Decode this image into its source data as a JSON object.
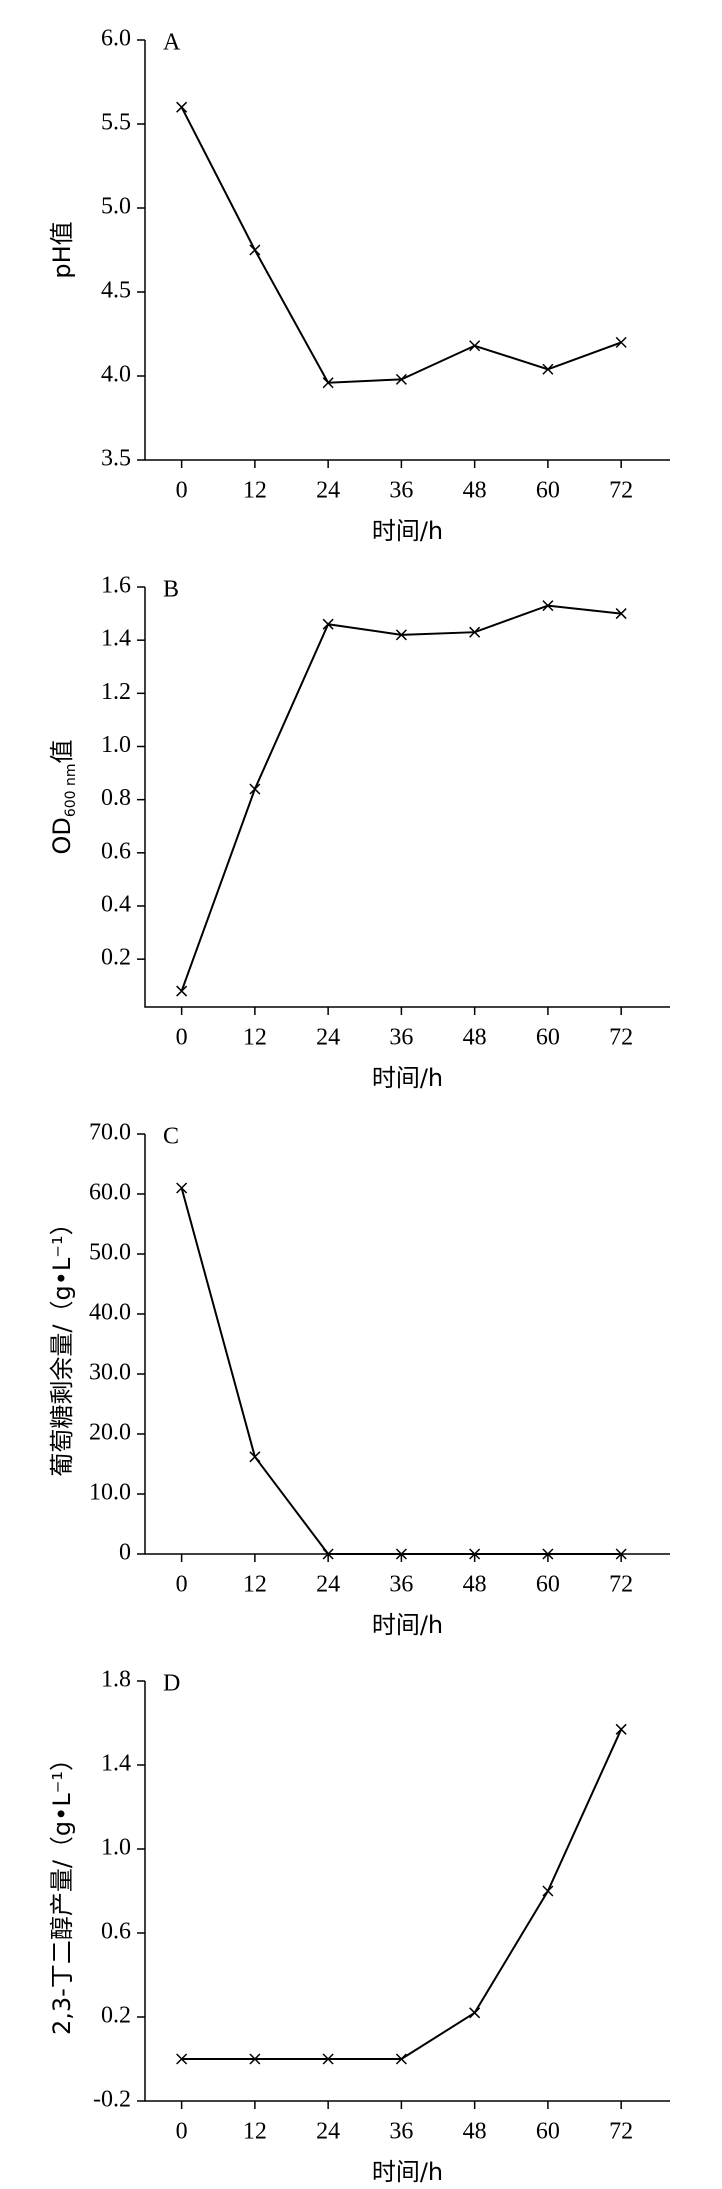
{
  "chart_data": [
    {
      "type": "line",
      "title": "A",
      "xlabel": "时间/h",
      "ylabel": "pH值",
      "x": [
        0,
        12,
        24,
        36,
        48,
        60,
        72
      ],
      "values": [
        5.6,
        4.75,
        3.96,
        3.98,
        4.18,
        4.04,
        4.2
      ],
      "color": "#000000",
      "xlim": [
        -6,
        80
      ],
      "xticks": [
        0,
        12,
        24,
        36,
        48,
        60,
        72
      ],
      "ylim": [
        3.5,
        6.0
      ],
      "yticks": [
        3.5,
        {
          "value": 4,
          "label": "4.0"
        },
        4.5,
        {
          "value": 5,
          "label": "5.0"
        },
        5.5,
        {
          "value": 6,
          "label": "6.0"
        }
      ]
    },
    {
      "type": "line",
      "title": "B",
      "xlabel": "时间/h",
      "ylabel": "OD",
      "ylabel_sub": "600 nm",
      "ylabel_suffix": "值",
      "x": [
        0,
        12,
        24,
        36,
        48,
        60,
        72
      ],
      "values": [
        0.08,
        0.84,
        1.46,
        1.42,
        1.43,
        1.53,
        1.5
      ],
      "color": "#000000",
      "xlim": [
        -6,
        80
      ],
      "xticks": [
        0,
        12,
        24,
        36,
        48,
        60,
        72
      ],
      "ylim": [
        0.02,
        1.6
      ],
      "yticks": [
        0.2,
        0.4,
        0.6,
        0.8,
        {
          "value": 1,
          "label": "1.0"
        },
        1.2,
        1.4,
        1.6
      ]
    },
    {
      "type": "line",
      "title": "C",
      "xlabel": "时间/h",
      "ylabel": "葡萄糖剩余量/（g•L⁻¹）",
      "x": [
        0,
        12,
        24,
        36,
        48,
        60,
        72
      ],
      "values": [
        61,
        16.2,
        0,
        0,
        0,
        0,
        0
      ],
      "color": "#000000",
      "xlim": [
        -6,
        80
      ],
      "xticks": [
        0,
        12,
        24,
        36,
        48,
        60,
        72
      ],
      "ylim": [
        0,
        70
      ],
      "yticks": [
        0,
        {
          "value": 10,
          "label": "10.0"
        },
        {
          "value": 20,
          "label": "20.0"
        },
        {
          "value": 30,
          "label": "30.0"
        },
        {
          "value": 40,
          "label": "40.0"
        },
        {
          "value": 50,
          "label": "50.0"
        },
        {
          "value": 60,
          "label": "60.0"
        },
        {
          "value": 70,
          "label": "70.0"
        }
      ]
    },
    {
      "type": "line",
      "title": "D",
      "xlabel": "时间/h",
      "ylabel": "2,3-丁二醇产量/（g•L⁻¹）",
      "x": [
        0,
        12,
        24,
        36,
        48,
        60,
        72
      ],
      "values": [
        0,
        0,
        0,
        0,
        0.22,
        0.8,
        1.57
      ],
      "color": "#000000",
      "xlim": [
        -6,
        80
      ],
      "xticks": [
        0,
        12,
        24,
        36,
        48,
        60,
        72
      ],
      "ylim": [
        -0.2,
        1.8
      ],
      "yticks": [
        -0.2,
        0.2,
        0.6,
        {
          "value": 1,
          "label": "1.0"
        },
        1.4,
        1.8
      ]
    }
  ]
}
